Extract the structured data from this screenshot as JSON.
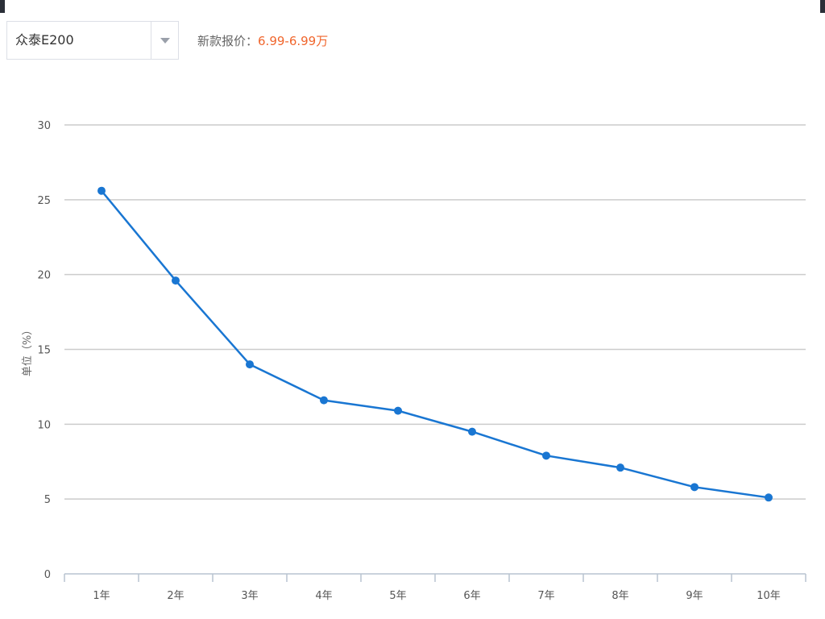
{
  "selector": {
    "value": "众泰E200"
  },
  "price": {
    "label": "新款报价：",
    "range": "6.99-6.99万"
  },
  "chart_data": {
    "type": "line",
    "title": "",
    "xlabel": "",
    "ylabel": "单位（%）",
    "categories": [
      "1年",
      "2年",
      "3年",
      "4年",
      "5年",
      "6年",
      "7年",
      "8年",
      "9年",
      "10年"
    ],
    "series": [
      {
        "values": [
          25.6,
          19.6,
          14.0,
          11.6,
          10.9,
          9.5,
          7.9,
          7.1,
          5.8,
          5.1
        ]
      }
    ],
    "ylim": [
      0,
      30
    ],
    "yticks": [
      0,
      5,
      10,
      15,
      20,
      25,
      30
    ],
    "grid": true,
    "legend": "none",
    "colors": {
      "line": "#1976d2",
      "grid": "#cccccc",
      "axis": "#b8c3d0"
    }
  }
}
